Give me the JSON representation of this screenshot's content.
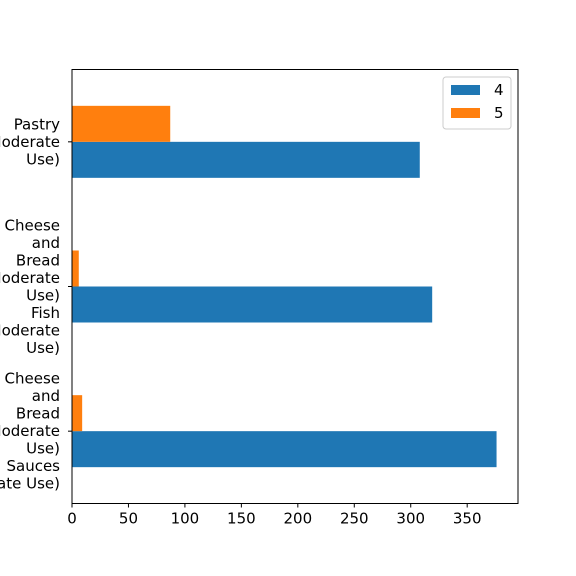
{
  "chart_data": {
    "type": "bar",
    "orientation": "horizontal",
    "categories": [
      [
        "Pastry",
        "(Moderate",
        "Use)"
      ],
      [
        "Cheese",
        "and",
        "Bread",
        "(Moderate",
        "Use)",
        "Fish",
        "(Moderate",
        "Use)"
      ],
      [
        "Cheese",
        "and",
        "Bread",
        "(Moderate",
        "Use)",
        "Sauces",
        "(Moderate Use)"
      ]
    ],
    "series": [
      {
        "name": "4",
        "color": "#1f77b4",
        "values": [
          308,
          319,
          376
        ]
      },
      {
        "name": "5",
        "color": "#ff7f0e",
        "values": [
          87,
          6,
          9
        ]
      }
    ],
    "xlim": [
      0,
      395
    ],
    "xticks": [
      "0",
      "50",
      "100",
      "150",
      "200",
      "250",
      "300",
      "350"
    ],
    "grid": false,
    "legend_position": "top-right"
  }
}
